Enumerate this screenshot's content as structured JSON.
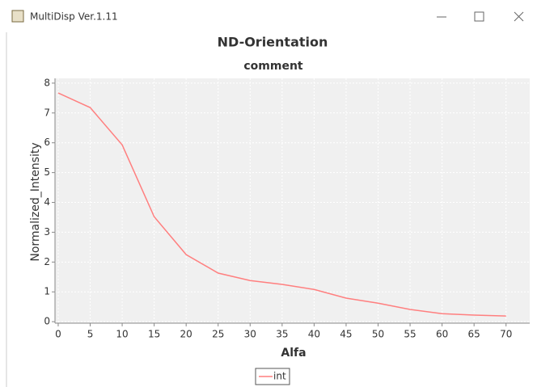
{
  "window": {
    "title": "MultiDisp Ver.1.11"
  },
  "chart_data": {
    "type": "line",
    "title": "ND-Orientation",
    "subtitle": "comment",
    "x_label": "Alfa",
    "y_label": "Normalized_Intensity",
    "x": [
      0,
      5,
      10,
      15,
      20,
      25,
      30,
      35,
      40,
      45,
      50,
      55,
      60,
      65,
      70
    ],
    "series": [
      {
        "name": "int",
        "color": "#ff7f7f",
        "values": [
          7.67,
          7.18,
          5.93,
          3.52,
          2.25,
          1.63,
          1.38,
          1.25,
          1.08,
          0.79,
          0.62,
          0.41,
          0.27,
          0.22,
          0.19
        ]
      }
    ],
    "xlim": [
      -0.5,
      73.7
    ],
    "ylim": [
      -0.05,
      8.16
    ],
    "xticks": [
      0,
      5,
      10,
      15,
      20,
      25,
      30,
      35,
      40,
      45,
      50,
      55,
      60,
      65,
      70
    ],
    "yticks": [
      0,
      1,
      2,
      3,
      4,
      5,
      6,
      7,
      8
    ],
    "grid": true,
    "legend": "bottom"
  }
}
